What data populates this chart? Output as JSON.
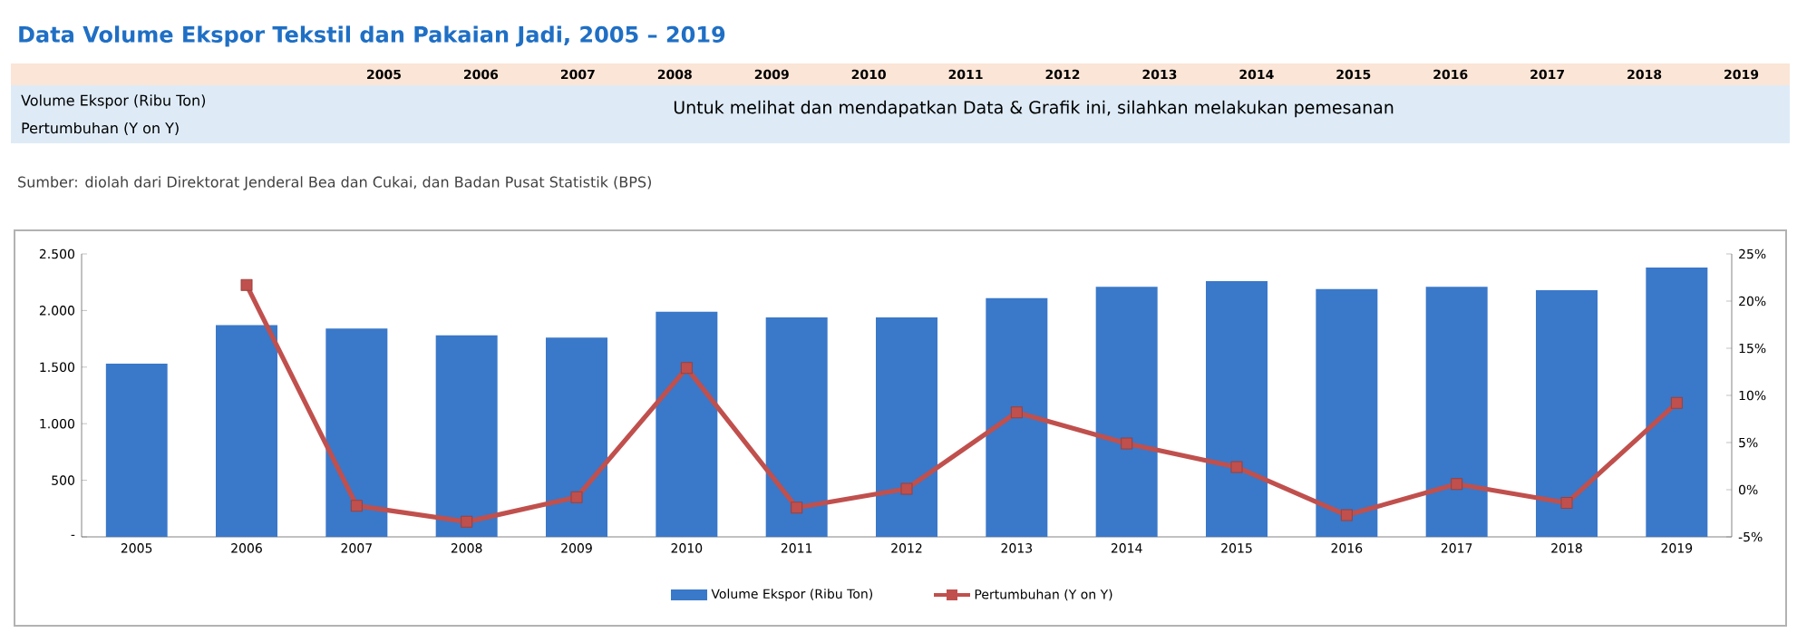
{
  "chart_data": {
    "type": "bar",
    "title": "Data Volume Ekspor Tekstil dan Pakaian Jadi, 2005 – 2019",
    "categories": [
      "2005",
      "2006",
      "2007",
      "2008",
      "2009",
      "2010",
      "2011",
      "2012",
      "2013",
      "2014",
      "2015",
      "2016",
      "2017",
      "2018",
      "2019"
    ],
    "series": [
      {
        "name": "Volume Ekspor (Ribu Ton)",
        "color": "#3a78c9",
        "values": [
          1530,
          1870,
          1840,
          1780,
          1760,
          1990,
          1940,
          1940,
          2110,
          2210,
          2260,
          2190,
          2210,
          2180,
          2380
        ]
      },
      {
        "name": "Pertumbuhan (Y on Y)",
        "type": "line",
        "axis": "y2",
        "color": "#c0504d",
        "marker": "square",
        "values": [
          null,
          21.7,
          -1.7,
          -3.4,
          -0.8,
          12.9,
          -1.9,
          0.1,
          8.2,
          4.9,
          2.4,
          -2.7,
          0.6,
          -1.4,
          9.2
        ]
      }
    ],
    "ylim": [
      0,
      2500
    ],
    "yticks": [
      {
        "value": 0,
        "label": "-"
      },
      {
        "value": 500,
        "label": "500"
      },
      {
        "value": 1000,
        "label": "1.000"
      },
      {
        "value": 1500,
        "label": "1.500"
      },
      {
        "value": 2000,
        "label": "2.000"
      },
      {
        "value": 2500,
        "label": "2.500"
      }
    ],
    "y2lim": [
      -5,
      25
    ],
    "y2ticks": [
      {
        "value": -5,
        "label": "-5%"
      },
      {
        "value": 0,
        "label": "0%"
      },
      {
        "value": 5,
        "label": "5%"
      },
      {
        "value": 10,
        "label": "10%"
      },
      {
        "value": 15,
        "label": "15%"
      },
      {
        "value": 20,
        "label": "20%"
      },
      {
        "value": 25,
        "label": "25%"
      }
    ],
    "legend": "bottom",
    "annotations": [
      "Volume Ekspor (Ribu Ton)",
      "Pertumbuhan (Y on Y)",
      "Untuk melihat dan mendapatkan Data & Grafik ini, silahkan melakukan pemesanan",
      "Sumber: diolah dari Direktorat Jenderal Bea dan Cukai, dan Badan Pusat Statistik (BPS)"
    ]
  }
}
